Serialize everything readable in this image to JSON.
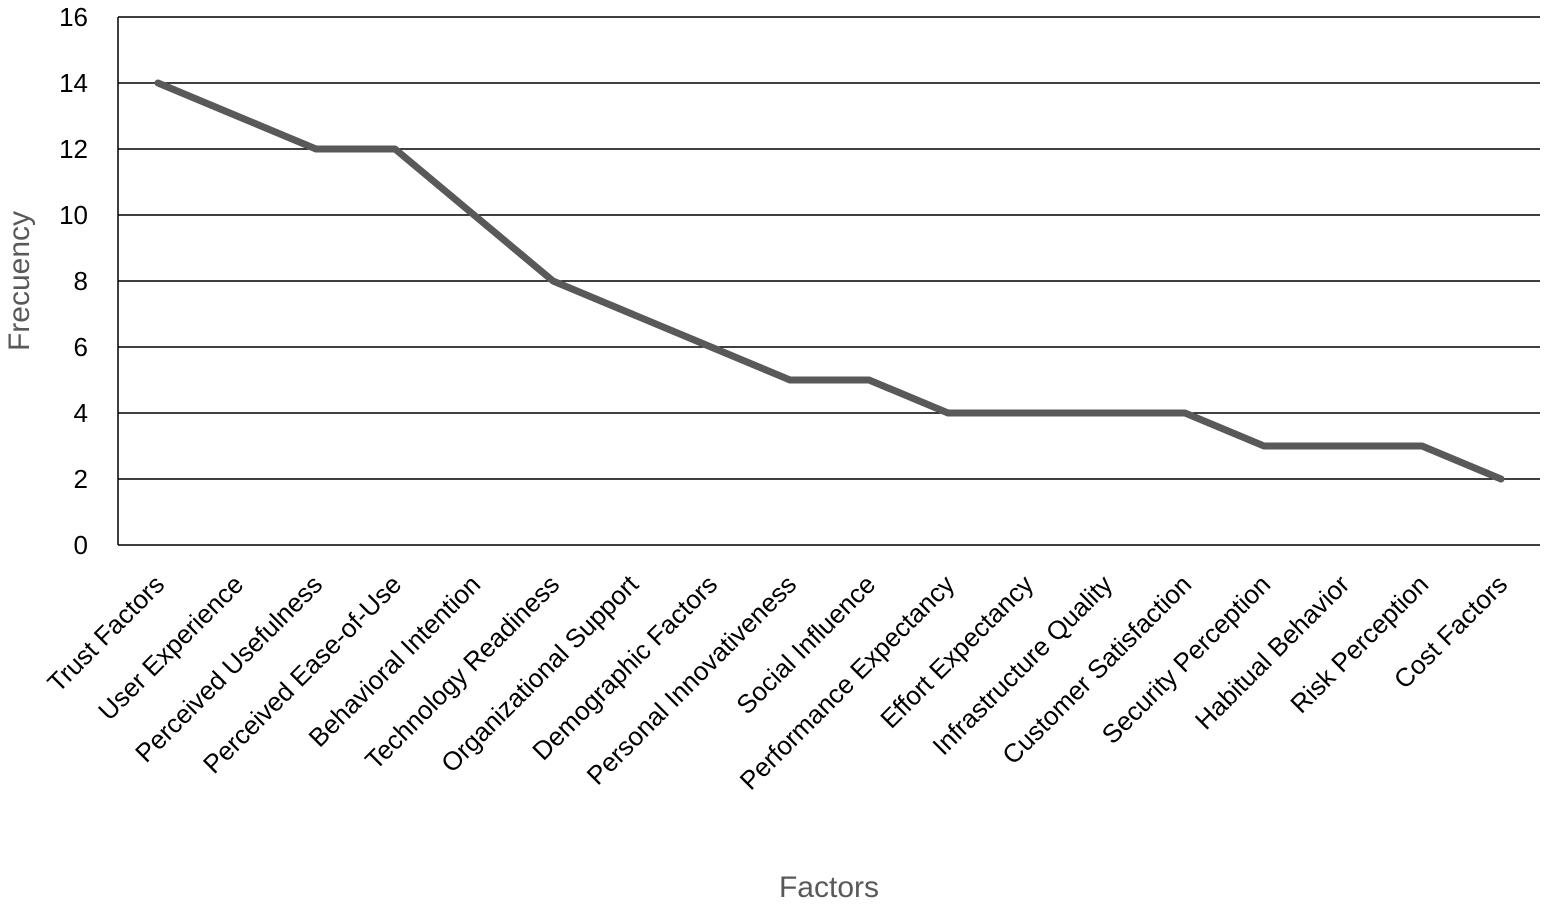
{
  "chart_data": {
    "type": "line",
    "title": "",
    "xlabel": "Factors",
    "ylabel": "Frecuency",
    "ylim": [
      0,
      16
    ],
    "yticks": [
      0,
      2,
      4,
      6,
      8,
      10,
      12,
      14,
      16
    ],
    "grid": true,
    "legend": "none",
    "colors": {
      "series": "#595959",
      "grid": "#000000",
      "axis_title": "#595959",
      "tick_label": "#000000"
    },
    "categories": [
      "Trust Factors",
      "User Experience",
      "Perceived Usefulness",
      "Perceived Ease-of-Use",
      "Behavioral Intention",
      "Technology Readiness",
      "Organizational Support",
      "Demographic Factors",
      "Personal Innovativeness",
      "Social Influence",
      "Performance Expectancy",
      "Effort Expectancy",
      "Infrastructure Quality",
      "Customer Satisfaction",
      "Security Perception",
      "Habitual Behavior",
      "Risk Perception",
      "Cost Factors"
    ],
    "series": [
      {
        "values": [
          14,
          13,
          12,
          12,
          10,
          8,
          7,
          6,
          5,
          5,
          4,
          4,
          4,
          4,
          3,
          3,
          3,
          2
        ]
      }
    ]
  }
}
